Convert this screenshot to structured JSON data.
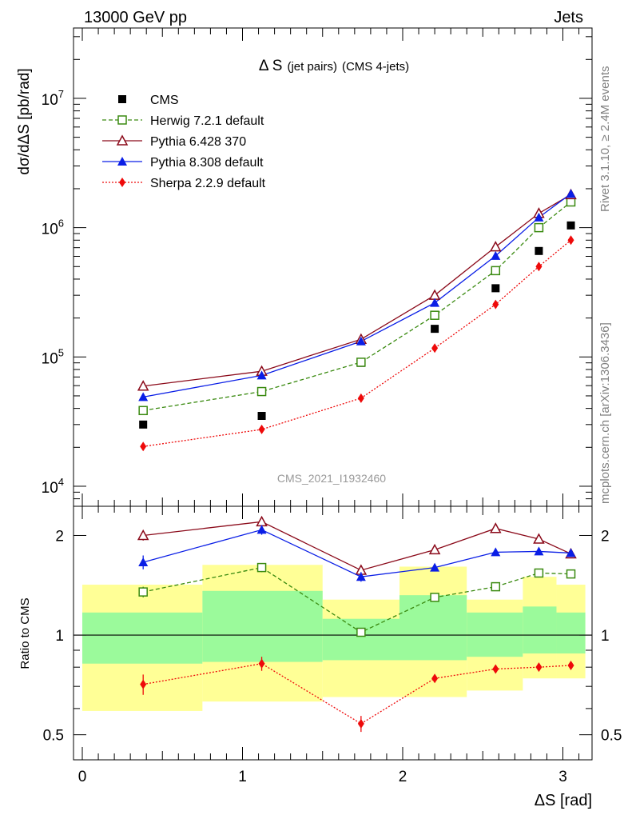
{
  "header": {
    "left_label": "13000 GeV pp",
    "right_label": "Jets",
    "side_label_top": "Rivet 3.1.10, ≥ 2.4M events",
    "side_label_bottom": "mcplots.cern.ch [arXiv:1306.3436]",
    "watermark": "CMS_2021_I1932460"
  },
  "chart_data": {
    "type": "scatter",
    "title": "Δ S",
    "title_small": "(jet pairs)",
    "subtitle": "(CMS 4-jets)",
    "ylabel": "dσ/dΔS [pb/rad]",
    "xlabel": "ΔS [rad]",
    "yscale": "log",
    "ylim": [
      7000,
      35000000
    ],
    "xlim": [
      -0.1,
      3.2
    ],
    "x": [
      0.38,
      1.12,
      1.74,
      2.2,
      2.58,
      2.85,
      3.05
    ],
    "x_ticks": [
      "0",
      "1",
      "2",
      "3"
    ],
    "y_ticks": [
      {
        "value": 10000,
        "base": "10",
        "exp": "4"
      },
      {
        "value": 100000,
        "base": "10",
        "exp": "5"
      },
      {
        "value": 1000000,
        "base": "10",
        "exp": "6"
      },
      {
        "value": 10000000,
        "base": "10",
        "exp": "7"
      }
    ],
    "legend_position": "top-left",
    "series": [
      {
        "name": "CMS",
        "color": "#000000",
        "marker": "square-filled",
        "line": "none",
        "values": [
          30000,
          35000,
          90000,
          165000,
          340000,
          660000,
          1040000
        ]
      },
      {
        "name": "Herwig 7.2.1 default",
        "color": "#3a8a10",
        "marker": "square-open",
        "line": "dashed",
        "values": [
          38500,
          54000,
          91000,
          210000,
          465000,
          1000000,
          1580000
        ]
      },
      {
        "name": "Pythia 6.428 370",
        "color": "#8b0a1a",
        "marker": "triangle-open",
        "line": "solid",
        "values": [
          59500,
          77500,
          137000,
          300000,
          710000,
          1290000,
          1800000
        ]
      },
      {
        "name": "Pythia 8.308 default",
        "color": "#0a1ee6",
        "marker": "triangle-filled",
        "line": "solid",
        "values": [
          49000,
          72000,
          132000,
          262000,
          605000,
          1200000,
          1830000
        ]
      },
      {
        "name": "Sherpa 2.2.9 default",
        "color": "#ee0a0a",
        "marker": "diamond-filled",
        "line": "dotted",
        "values": [
          20300,
          27500,
          48000,
          117000,
          255000,
          500000,
          800000
        ]
      }
    ],
    "ratio": {
      "ylabel": "Ratio to CMS",
      "ylim": [
        0.42,
        2.45
      ],
      "ticks": [
        "0.5",
        "1",
        "2"
      ],
      "tick_values": [
        0.5,
        1,
        2
      ],
      "bins": [
        0,
        0.75,
        1.5,
        1.98,
        2.4,
        2.75,
        2.96,
        3.14
      ],
      "band_outer": [
        [
          0.59,
          1.42
        ],
        [
          0.63,
          1.63
        ],
        [
          0.65,
          1.28
        ],
        [
          0.65,
          1.61
        ],
        [
          0.68,
          1.28
        ],
        [
          0.74,
          1.5
        ],
        [
          0.74,
          1.42
        ]
      ],
      "band_inner": [
        [
          0.82,
          1.17
        ],
        [
          0.83,
          1.36
        ],
        [
          0.84,
          1.12
        ],
        [
          0.84,
          1.32
        ],
        [
          0.86,
          1.17
        ],
        [
          0.88,
          1.22
        ],
        [
          0.88,
          1.17
        ]
      ],
      "series": [
        {
          "name": "Herwig 7.2.1 default",
          "values": [
            1.35,
            1.6,
            1.02,
            1.3,
            1.4,
            1.54,
            1.53
          ],
          "err": [
            0.05,
            0.05,
            0.03,
            0.02,
            0.02,
            0.02,
            0.02
          ]
        },
        {
          "name": "Pythia 6.428 370",
          "values": [
            2.0,
            2.2,
            1.57,
            1.81,
            2.1,
            1.95,
            1.76
          ],
          "err": [
            0.07,
            0.06,
            0.04,
            0.03,
            0.03,
            0.02,
            0.02
          ]
        },
        {
          "name": "Pythia 8.308 default",
          "values": [
            1.66,
            2.08,
            1.5,
            1.6,
            1.78,
            1.79,
            1.77
          ],
          "err": [
            0.08,
            0.07,
            0.05,
            0.04,
            0.02,
            0.02,
            0.02
          ]
        },
        {
          "name": "Sherpa 2.2.9 default",
          "values": [
            0.71,
            0.82,
            0.54,
            0.74,
            0.79,
            0.8,
            0.81
          ],
          "err": [
            0.05,
            0.04,
            0.03,
            0.02,
            0.02,
            0.01,
            0.01
          ]
        }
      ]
    }
  }
}
